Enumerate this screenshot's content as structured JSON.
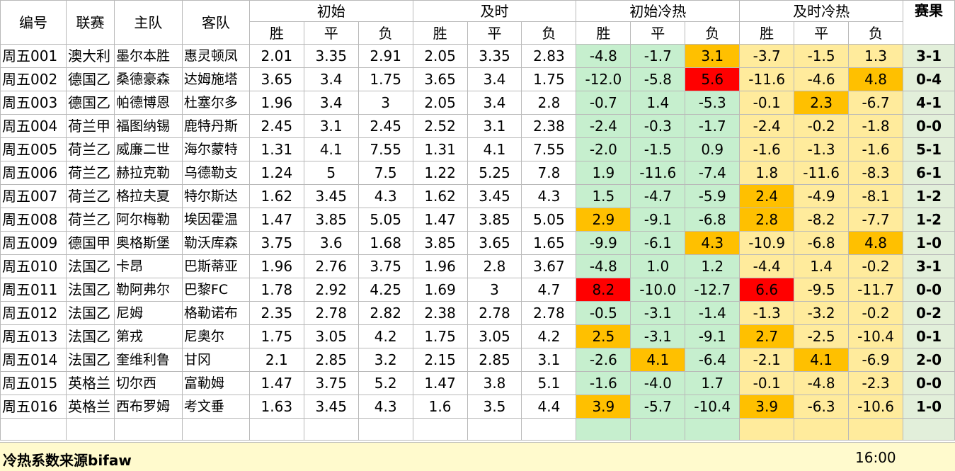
{
  "headers": {
    "id": "编号",
    "league": "联赛",
    "home": "主队",
    "away": "客队",
    "initial": "初始",
    "live": "及时",
    "initial_heat": "初始冷热",
    "live_heat": "及时冷热",
    "result": "赛果",
    "win": "胜",
    "draw": "平",
    "loss": "负"
  },
  "rows": [
    {
      "id": "周五001",
      "league": "澳大利",
      "home": "墨尔本胜",
      "away": "惠灵顿凤",
      "iw": "2.01",
      "id_": "3.35",
      "il": "2.91",
      "lw": "2.05",
      "ld": "3.35",
      "ll": "2.83",
      "hw": "-4.8",
      "hd": "-1.7",
      "hl": "3.1",
      "jw": "-3.7",
      "jd": "-1.5",
      "jl": "1.3",
      "res": "3-1"
    },
    {
      "id": "周五002",
      "league": "德国乙",
      "home": "桑德豪森",
      "away": "达姆施塔",
      "iw": "3.65",
      "id_": "3.4",
      "il": "1.75",
      "lw": "3.65",
      "ld": "3.4",
      "ll": "1.75",
      "hw": "-12.0",
      "hd": "-5.8",
      "hl": "5.6",
      "jw": "-11.6",
      "jd": "-4.6",
      "jl": "4.8",
      "res": "0-4"
    },
    {
      "id": "周五003",
      "league": "德国乙",
      "home": "帕德博恩",
      "away": "杜塞尔多",
      "iw": "1.96",
      "id_": "3.4",
      "il": "3",
      "lw": "2.05",
      "ld": "3.4",
      "ll": "2.8",
      "hw": "-0.7",
      "hd": "1.4",
      "hl": "-5.3",
      "jw": "-0.1",
      "jd": "2.3",
      "jl": "-6.7",
      "res": "4-1"
    },
    {
      "id": "周五004",
      "league": "荷兰甲",
      "home": "福图纳锡",
      "away": "鹿特丹斯",
      "iw": "2.45",
      "id_": "3.1",
      "il": "2.45",
      "lw": "2.52",
      "ld": "3.1",
      "ll": "2.38",
      "hw": "-2.4",
      "hd": "-0.3",
      "hl": "-1.7",
      "jw": "-2.4",
      "jd": "-0.2",
      "jl": "-1.8",
      "res": "0-0"
    },
    {
      "id": "周五005",
      "league": "荷兰乙",
      "home": "威廉二世",
      "away": "海尔蒙特",
      "iw": "1.31",
      "id_": "4.1",
      "il": "7.55",
      "lw": "1.31",
      "ld": "4.1",
      "ll": "7.55",
      "hw": "-2.0",
      "hd": "-1.5",
      "hl": "0.9",
      "jw": "-1.6",
      "jd": "-1.3",
      "jl": "-1.6",
      "res": "5-1"
    },
    {
      "id": "周五006",
      "league": "荷兰乙",
      "home": "赫拉克勒",
      "away": "乌德勒支",
      "iw": "1.24",
      "id_": "5",
      "il": "7.5",
      "lw": "1.22",
      "ld": "5.25",
      "ll": "7.8",
      "hw": "1.9",
      "hd": "-11.6",
      "hl": "-7.4",
      "jw": "1.8",
      "jd": "-11.6",
      "jl": "-8.3",
      "res": "6-1"
    },
    {
      "id": "周五007",
      "league": "荷兰乙",
      "home": "格拉夫夏",
      "away": "特尔斯达",
      "iw": "1.62",
      "id_": "3.45",
      "il": "4.3",
      "lw": "1.62",
      "ld": "3.45",
      "ll": "4.3",
      "hw": "1.5",
      "hd": "-4.7",
      "hl": "-5.9",
      "jw": "2.4",
      "jd": "-4.9",
      "jl": "-8.1",
      "res": "1-2"
    },
    {
      "id": "周五008",
      "league": "荷兰乙",
      "home": "阿尔梅勒",
      "away": "埃因霍温",
      "iw": "1.47",
      "id_": "3.85",
      "il": "5.05",
      "lw": "1.47",
      "ld": "3.85",
      "ll": "5.05",
      "hw": "2.9",
      "hd": "-9.1",
      "hl": "-6.8",
      "jw": "2.8",
      "jd": "-8.2",
      "jl": "-7.7",
      "res": "1-2"
    },
    {
      "id": "周五009",
      "league": "德国甲",
      "home": "奥格斯堡",
      "away": "勒沃库森",
      "iw": "3.75",
      "id_": "3.6",
      "il": "1.68",
      "lw": "3.85",
      "ld": "3.65",
      "ll": "1.65",
      "hw": "-9.9",
      "hd": "-6.1",
      "hl": "4.3",
      "jw": "-10.9",
      "jd": "-6.8",
      "jl": "4.8",
      "res": "1-0"
    },
    {
      "id": "周五010",
      "league": "法国乙",
      "home": "卡昂",
      "away": "巴斯蒂亚",
      "iw": "1.96",
      "id_": "2.76",
      "il": "3.75",
      "lw": "1.96",
      "ld": "2.8",
      "ll": "3.67",
      "hw": "-4.8",
      "hd": "1.0",
      "hl": "1.2",
      "jw": "-4.4",
      "jd": "1.4",
      "jl": "-0.2",
      "res": "3-1"
    },
    {
      "id": "周五011",
      "league": "法国乙",
      "home": "勒阿弗尔",
      "away": "巴黎FC",
      "iw": "1.78",
      "id_": "2.92",
      "il": "4.25",
      "lw": "1.69",
      "ld": "3",
      "ll": "4.7",
      "hw": "8.2",
      "hd": "-10.0",
      "hl": "-12.7",
      "jw": "6.6",
      "jd": "-9.5",
      "jl": "-11.7",
      "res": "0-0"
    },
    {
      "id": "周五012",
      "league": "法国乙",
      "home": "尼姆",
      "away": "格勒诺布",
      "iw": "2.35",
      "id_": "2.78",
      "il": "2.82",
      "lw": "2.38",
      "ld": "2.78",
      "ll": "2.78",
      "hw": "-0.5",
      "hd": "-3.1",
      "hl": "-1.4",
      "jw": "-1.3",
      "jd": "-3.2",
      "jl": "-0.2",
      "res": "0-2"
    },
    {
      "id": "周五013",
      "league": "法国乙",
      "home": "第戎",
      "away": "尼奥尔",
      "iw": "1.75",
      "id_": "3.05",
      "il": "4.2",
      "lw": "1.75",
      "ld": "3.05",
      "ll": "4.2",
      "hw": "2.5",
      "hd": "-3.1",
      "hl": "-9.1",
      "jw": "2.7",
      "jd": "-2.5",
      "jl": "-10.4",
      "res": "0-1"
    },
    {
      "id": "周五014",
      "league": "法国乙",
      "home": "奎维利鲁",
      "away": "甘冈",
      "iw": "2.1",
      "id_": "2.85",
      "il": "3.2",
      "lw": "2.15",
      "ld": "2.85",
      "ll": "3.1",
      "hw": "-2.6",
      "hd": "4.1",
      "hl": "-6.4",
      "jw": "-2.1",
      "jd": "4.1",
      "jl": "-6.9",
      "res": "2-0"
    },
    {
      "id": "周五015",
      "league": "英格兰",
      "home": "切尔西",
      "away": "富勒姆",
      "iw": "1.47",
      "id_": "3.75",
      "il": "5.2",
      "lw": "1.47",
      "ld": "3.8",
      "ll": "5.1",
      "hw": "-1.6",
      "hd": "-4.0",
      "hl": "1.7",
      "jw": "-0.1",
      "jd": "-4.8",
      "jl": "-2.3",
      "res": "0-0"
    },
    {
      "id": "周五016",
      "league": "英格兰",
      "home": "西布罗姆",
      "away": "考文垂",
      "iw": "1.63",
      "id_": "3.45",
      "il": "4.3",
      "lw": "1.6",
      "ld": "3.5",
      "ll": "4.4",
      "hw": "3.9",
      "hd": "-5.7",
      "hl": "-10.4",
      "jw": "3.9",
      "jd": "-6.3",
      "jl": "-10.6",
      "res": "1-0"
    }
  ],
  "highlights": {
    "orange": [
      "0.hl",
      "1.jl",
      "2.jd",
      "6.jw",
      "7.hw",
      "7.jw",
      "8.hl",
      "8.jl",
      "10.hd_none",
      "12.hw",
      "12.jw",
      "13.hd",
      "13.jd",
      "15.hw",
      "15.jw"
    ],
    "red": [
      "1.hl",
      "10.hw",
      "10.jw"
    ]
  },
  "colors": {
    "heat_green": "#c6efce",
    "heat_yellow": "#ffeb9c",
    "hot_orange": "#ffc000",
    "hot_red": "#ff0000"
  },
  "footer": {
    "source": "冷热系数来源bifaw",
    "time": "16:00"
  }
}
